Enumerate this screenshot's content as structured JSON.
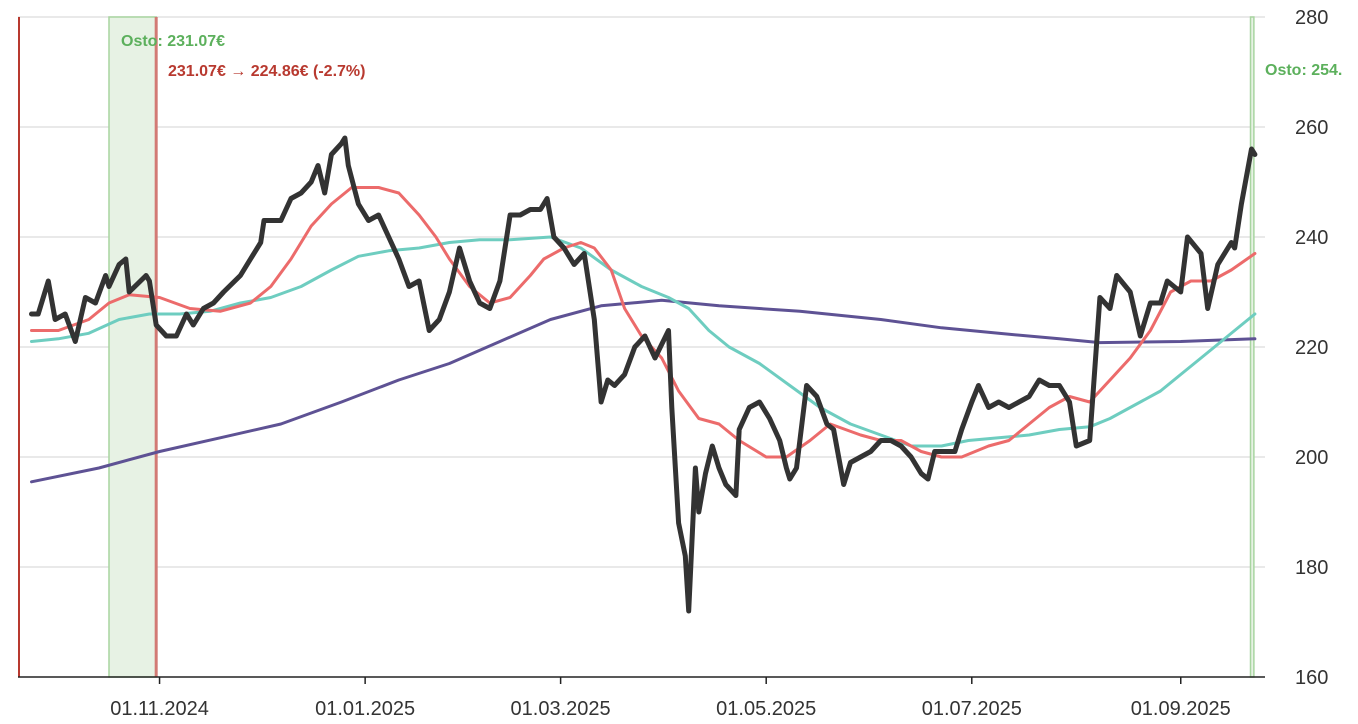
{
  "chart_data": {
    "type": "line",
    "x_unit": "days since 20.09.2024",
    "xlim": [
      0,
      370
    ],
    "ylim": [
      160,
      280
    ],
    "y_ticks": [
      160,
      180,
      200,
      220,
      240,
      260,
      280
    ],
    "y_axis_position": "right",
    "grid": true,
    "x_ticks": [
      {
        "day": 42,
        "label": "01.11.2024"
      },
      {
        "day": 103,
        "label": "01.01.2025"
      },
      {
        "day": 161,
        "label": "01.03.2025"
      },
      {
        "day": 222,
        "label": "01.05.2025"
      },
      {
        "day": 283,
        "label": "01.07.2025"
      },
      {
        "day": 345,
        "label": "01.09.2025"
      }
    ],
    "series": [
      {
        "name": "ma-long",
        "color": "#5e5294",
        "width": 3,
        "points": [
          [
            4,
            195.5
          ],
          [
            24,
            198
          ],
          [
            42,
            201
          ],
          [
            60,
            203.5
          ],
          [
            78,
            206
          ],
          [
            96,
            210
          ],
          [
            113,
            214
          ],
          [
            128,
            217
          ],
          [
            143,
            221
          ],
          [
            158,
            225
          ],
          [
            173,
            227.5
          ],
          [
            191,
            228.5
          ],
          [
            208,
            227.5
          ],
          [
            232,
            226.5
          ],
          [
            256,
            225
          ],
          [
            274,
            223.5
          ],
          [
            291,
            222.5
          ],
          [
            309,
            221.5
          ],
          [
            321,
            220.8
          ],
          [
            345,
            221
          ],
          [
            367,
            221.5
          ]
        ]
      },
      {
        "name": "ma-medium",
        "color": "#6ecdc0",
        "width": 3,
        "points": [
          [
            4,
            221
          ],
          [
            12,
            221.5
          ],
          [
            21,
            222.5
          ],
          [
            30,
            225
          ],
          [
            39,
            226
          ],
          [
            48,
            226
          ],
          [
            57,
            226.5
          ],
          [
            66,
            228
          ],
          [
            75,
            229
          ],
          [
            84,
            231
          ],
          [
            93,
            234
          ],
          [
            101,
            236.5
          ],
          [
            110,
            237.5
          ],
          [
            119,
            238
          ],
          [
            128,
            239
          ],
          [
            137,
            239.5
          ],
          [
            146,
            239.5
          ],
          [
            158,
            240
          ],
          [
            167,
            238
          ],
          [
            176,
            234
          ],
          [
            185,
            231
          ],
          [
            193,
            229
          ],
          [
            199,
            227
          ],
          [
            205,
            223
          ],
          [
            211,
            220
          ],
          [
            220,
            217
          ],
          [
            229,
            213
          ],
          [
            238,
            209
          ],
          [
            247,
            206
          ],
          [
            256,
            204
          ],
          [
            265,
            202
          ],
          [
            274,
            202
          ],
          [
            282,
            203
          ],
          [
            291,
            203.5
          ],
          [
            300,
            204
          ],
          [
            309,
            205
          ],
          [
            318,
            205.5
          ],
          [
            324,
            207
          ],
          [
            330,
            209
          ],
          [
            339,
            212
          ],
          [
            345,
            215
          ],
          [
            351,
            218
          ],
          [
            357,
            221
          ],
          [
            363,
            224
          ],
          [
            367,
            226
          ]
        ]
      },
      {
        "name": "ma-short",
        "color": "#ec6b6b",
        "width": 3,
        "points": [
          [
            4,
            223
          ],
          [
            12,
            223
          ],
          [
            21,
            225
          ],
          [
            27,
            228
          ],
          [
            33,
            229.5
          ],
          [
            42,
            229
          ],
          [
            51,
            227
          ],
          [
            60,
            226.5
          ],
          [
            69,
            228
          ],
          [
            75,
            231
          ],
          [
            81,
            236
          ],
          [
            87,
            242
          ],
          [
            93,
            246
          ],
          [
            99,
            249
          ],
          [
            107,
            249
          ],
          [
            113,
            248
          ],
          [
            119,
            244
          ],
          [
            124,
            240
          ],
          [
            128,
            236
          ],
          [
            134,
            231
          ],
          [
            140,
            228
          ],
          [
            146,
            229
          ],
          [
            152,
            233
          ],
          [
            156,
            236
          ],
          [
            162,
            238
          ],
          [
            167,
            239
          ],
          [
            171,
            238
          ],
          [
            176,
            234
          ],
          [
            180,
            227
          ],
          [
            185,
            222
          ],
          [
            191,
            218
          ],
          [
            196,
            212
          ],
          [
            202,
            207
          ],
          [
            208,
            206
          ],
          [
            214,
            203
          ],
          [
            222,
            200
          ],
          [
            228,
            200
          ],
          [
            235,
            203
          ],
          [
            241,
            206
          ],
          [
            250,
            204
          ],
          [
            256,
            203
          ],
          [
            262,
            203
          ],
          [
            268,
            201
          ],
          [
            274,
            200
          ],
          [
            280,
            200
          ],
          [
            288,
            202
          ],
          [
            294,
            203
          ],
          [
            300,
            206
          ],
          [
            306,
            209
          ],
          [
            312,
            211
          ],
          [
            318,
            210
          ],
          [
            324,
            214
          ],
          [
            330,
            218
          ],
          [
            336,
            223
          ],
          [
            342,
            230
          ],
          [
            348,
            232
          ],
          [
            354,
            232
          ],
          [
            360,
            234
          ],
          [
            367,
            237
          ]
        ]
      },
      {
        "name": "price",
        "color": "#333333",
        "width": 5,
        "points": [
          [
            4,
            226
          ],
          [
            6,
            226
          ],
          [
            9,
            232
          ],
          [
            11,
            225
          ],
          [
            14,
            226
          ],
          [
            17,
            221
          ],
          [
            20,
            229
          ],
          [
            23,
            228
          ],
          [
            26,
            233
          ],
          [
            27,
            231
          ],
          [
            30,
            235
          ],
          [
            32,
            236
          ],
          [
            33,
            230
          ],
          [
            38,
            233
          ],
          [
            39,
            232
          ],
          [
            41,
            224
          ],
          [
            44,
            222
          ],
          [
            47,
            222
          ],
          [
            50,
            226
          ],
          [
            52,
            224
          ],
          [
            55,
            227
          ],
          [
            58,
            228
          ],
          [
            61,
            230
          ],
          [
            66,
            233
          ],
          [
            69,
            236
          ],
          [
            72,
            239
          ],
          [
            73,
            243
          ],
          [
            75,
            243
          ],
          [
            78,
            243
          ],
          [
            81,
            247
          ],
          [
            84,
            248
          ],
          [
            87,
            250
          ],
          [
            89,
            253
          ],
          [
            91,
            248
          ],
          [
            93,
            255
          ],
          [
            96,
            257
          ],
          [
            97,
            258
          ],
          [
            98,
            253
          ],
          [
            101,
            246
          ],
          [
            104,
            243
          ],
          [
            107,
            244
          ],
          [
            110,
            240
          ],
          [
            113,
            236
          ],
          [
            116,
            231
          ],
          [
            119,
            232
          ],
          [
            122,
            223
          ],
          [
            125,
            225
          ],
          [
            128,
            230
          ],
          [
            131,
            238
          ],
          [
            134,
            232
          ],
          [
            137,
            228
          ],
          [
            140,
            227
          ],
          [
            143,
            232
          ],
          [
            146,
            244
          ],
          [
            149,
            244
          ],
          [
            152,
            245
          ],
          [
            155,
            245
          ],
          [
            157,
            247
          ],
          [
            159,
            240
          ],
          [
            162,
            238
          ],
          [
            165,
            235
          ],
          [
            168,
            237
          ],
          [
            171,
            225
          ],
          [
            173,
            210
          ],
          [
            175,
            214
          ],
          [
            177,
            213
          ],
          [
            180,
            215
          ],
          [
            183,
            220
          ],
          [
            186,
            222
          ],
          [
            189,
            218
          ],
          [
            193,
            223
          ],
          [
            194,
            209
          ],
          [
            196,
            188
          ],
          [
            198,
            182
          ],
          [
            199,
            172
          ],
          [
            201,
            198
          ],
          [
            202,
            190
          ],
          [
            204,
            197
          ],
          [
            206,
            202
          ],
          [
            208,
            198
          ],
          [
            210,
            195
          ],
          [
            213,
            193
          ],
          [
            214,
            205
          ],
          [
            217,
            209
          ],
          [
            220,
            210
          ],
          [
            223,
            207
          ],
          [
            226,
            203
          ],
          [
            228,
            198
          ],
          [
            229,
            196
          ],
          [
            231,
            198
          ],
          [
            234,
            213
          ],
          [
            237,
            211
          ],
          [
            240,
            206
          ],
          [
            242,
            205
          ],
          [
            245,
            195
          ],
          [
            247,
            199
          ],
          [
            250,
            200
          ],
          [
            253,
            201
          ],
          [
            256,
            203
          ],
          [
            259,
            203
          ],
          [
            262,
            202
          ],
          [
            265,
            200
          ],
          [
            268,
            197
          ],
          [
            270,
            196
          ],
          [
            272,
            201
          ],
          [
            275,
            201
          ],
          [
            278,
            201
          ],
          [
            280,
            205
          ],
          [
            283,
            210
          ],
          [
            285,
            213
          ],
          [
            288,
            209
          ],
          [
            291,
            210
          ],
          [
            294,
            209
          ],
          [
            297,
            210
          ],
          [
            300,
            211
          ],
          [
            303,
            214
          ],
          [
            306,
            213
          ],
          [
            309,
            213
          ],
          [
            312,
            210
          ],
          [
            314,
            202
          ],
          [
            318,
            203
          ],
          [
            321,
            229
          ],
          [
            324,
            227
          ],
          [
            326,
            233
          ],
          [
            330,
            230
          ],
          [
            333,
            222
          ],
          [
            336,
            228
          ],
          [
            339,
            228
          ],
          [
            341,
            232
          ],
          [
            345,
            230
          ],
          [
            347,
            240
          ],
          [
            351,
            237
          ],
          [
            353,
            227
          ],
          [
            356,
            235
          ],
          [
            360,
            239
          ],
          [
            361,
            238
          ],
          [
            363,
            246
          ],
          [
            366,
            256
          ],
          [
            367,
            255
          ]
        ]
      }
    ],
    "annotations": {
      "buy1_band": {
        "from_day": 27,
        "to_day": 41
      },
      "sell_line_day": 41,
      "start_line_day": 0,
      "buy2_band": {
        "from_day": 366,
        "to_day": 367
      },
      "buy1_label": "Osto: 231.07€",
      "trade_label": "231.07€ → 224.86€ (-2.7%)",
      "buy2_label": "Osto: 254.",
      "buy_color": "#5cb05c",
      "sell_color": "#b8392f"
    }
  }
}
